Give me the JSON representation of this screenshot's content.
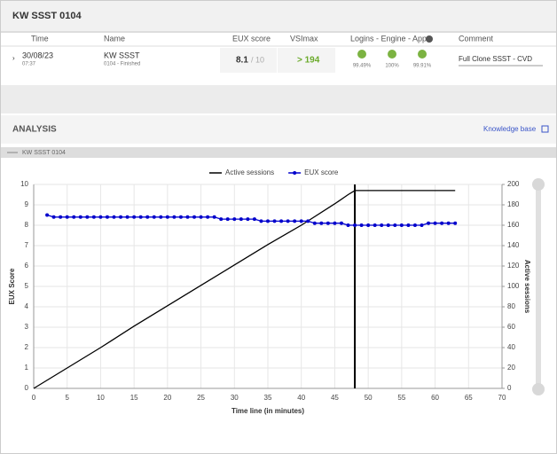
{
  "header": {
    "title": "KW SSST 0104"
  },
  "table": {
    "columns": [
      "Time",
      "Name",
      "EUX score",
      "VSImax",
      "Logins - Engine - Apps",
      "Comment"
    ],
    "rows": [
      {
        "time": "30/08/23",
        "time_sub": "07:37",
        "name": "KW SSST",
        "name_sub": "0104 - Finished",
        "eux_score": "8.1",
        "eux_max": "/ 10",
        "vsimax": "> 194",
        "logins": "99.49%",
        "engine": "100%",
        "apps": "99.91%",
        "comment": "Full Clone SSST - CVD"
      }
    ]
  },
  "analysis": {
    "title": "ANALYSIS",
    "link": "Knowledge base",
    "tab": "KW SSST 0104"
  },
  "chart_data": {
    "type": "line",
    "xlabel": "Time line (in minutes)",
    "ylabel": "EUX Score",
    "y2label": "Active sessions",
    "xlim": [
      0,
      70
    ],
    "xticks": [
      0,
      5,
      10,
      15,
      20,
      25,
      30,
      35,
      40,
      45,
      50,
      55,
      60,
      65,
      70
    ],
    "ylim": [
      0,
      10
    ],
    "yticks": [
      0,
      1,
      2,
      3,
      4,
      5,
      6,
      7,
      8,
      9,
      10
    ],
    "y2lim": [
      0,
      200
    ],
    "y2ticks": [
      0,
      20,
      40,
      60,
      80,
      100,
      120,
      140,
      160,
      180,
      200
    ],
    "grid": true,
    "legend": "top",
    "vsimax_x": 48,
    "series": [
      {
        "name": "Active sessions",
        "color": "#000000",
        "axis": "y2",
        "x": [
          0,
          5,
          10,
          15,
          20,
          25,
          30,
          35,
          40,
          45,
          47,
          48,
          63
        ],
        "values": [
          0,
          20,
          40,
          61,
          81,
          101,
          121,
          141,
          160,
          181,
          190,
          194,
          194
        ]
      },
      {
        "name": "EUX score",
        "color": "#0000cc",
        "x": [
          2,
          3,
          4,
          5,
          6,
          7,
          8,
          9,
          10,
          11,
          12,
          13,
          14,
          15,
          16,
          17,
          18,
          19,
          20,
          21,
          22,
          23,
          24,
          25,
          26,
          27,
          28,
          29,
          30,
          31,
          32,
          33,
          34,
          35,
          36,
          37,
          38,
          39,
          40,
          41,
          42,
          43,
          44,
          45,
          46,
          47,
          48,
          49,
          50,
          51,
          52,
          53,
          54,
          55,
          56,
          57,
          58,
          59,
          60,
          61,
          62,
          63
        ],
        "values": [
          8.5,
          8.4,
          8.4,
          8.4,
          8.4,
          8.4,
          8.4,
          8.4,
          8.4,
          8.4,
          8.4,
          8.4,
          8.4,
          8.4,
          8.4,
          8.4,
          8.4,
          8.4,
          8.4,
          8.4,
          8.4,
          8.4,
          8.4,
          8.4,
          8.4,
          8.4,
          8.3,
          8.3,
          8.3,
          8.3,
          8.3,
          8.3,
          8.2,
          8.2,
          8.2,
          8.2,
          8.2,
          8.2,
          8.2,
          8.2,
          8.1,
          8.1,
          8.1,
          8.1,
          8.1,
          8.0,
          8.0,
          8.0,
          8.0,
          8.0,
          8.0,
          8.0,
          8.0,
          8.0,
          8.0,
          8.0,
          8.0,
          8.1,
          8.1,
          8.1,
          8.1,
          8.1
        ]
      }
    ]
  }
}
